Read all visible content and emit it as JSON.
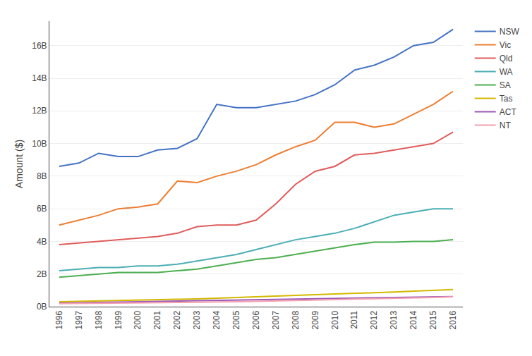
{
  "chart_data": {
    "type": "line",
    "ylabel": "Amount ($)",
    "x": [
      1996,
      1997,
      1998,
      1999,
      2000,
      2001,
      2002,
      2003,
      2004,
      2005,
      2006,
      2007,
      2008,
      2009,
      2010,
      2011,
      2012,
      2013,
      2014,
      2015,
      2016
    ],
    "series": [
      {
        "name": "NSW",
        "color": "#4472C4",
        "values": [
          8.6,
          8.8,
          9.4,
          9.2,
          9.2,
          9.6,
          9.7,
          10.3,
          12.4,
          12.2,
          12.2,
          12.4,
          12.6,
          13.0,
          13.6,
          14.5,
          14.8,
          15.3,
          16.0,
          16.2,
          17.0
        ]
      },
      {
        "name": "Vic",
        "color": "#ED7D31",
        "values": [
          5.0,
          5.3,
          5.6,
          6.0,
          6.1,
          6.3,
          7.7,
          7.6,
          8.0,
          8.3,
          8.7,
          9.3,
          9.8,
          10.2,
          11.3,
          11.3,
          11.0,
          11.2,
          11.8,
          12.4,
          13.2
        ]
      },
      {
        "name": "Qld",
        "color": "#E05C5C",
        "values": [
          3.8,
          3.9,
          4.0,
          4.1,
          4.2,
          4.3,
          4.5,
          4.9,
          5.0,
          5.0,
          5.3,
          6.3,
          7.5,
          8.3,
          8.6,
          9.3,
          9.4,
          9.6,
          9.8,
          10.0,
          10.7
        ]
      },
      {
        "name": "WA",
        "color": "#4BAEB4",
        "values": [
          2.2,
          2.3,
          2.4,
          2.4,
          2.5,
          2.5,
          2.6,
          2.8,
          3.0,
          3.2,
          3.5,
          3.8,
          4.1,
          4.3,
          4.5,
          4.8,
          5.2,
          5.6,
          5.8,
          6.0,
          6.0
        ]
      },
      {
        "name": "SA",
        "color": "#4CAF50",
        "values": [
          1.8,
          1.9,
          2.0,
          2.1,
          2.1,
          2.1,
          2.2,
          2.3,
          2.5,
          2.7,
          2.9,
          3.0,
          3.2,
          3.4,
          3.6,
          3.8,
          3.95,
          3.95,
          4.0,
          4.0,
          4.1
        ]
      },
      {
        "name": "Tas",
        "color": "#D4B800",
        "values": [
          0.3,
          0.32,
          0.35,
          0.38,
          0.4,
          0.42,
          0.45,
          0.48,
          0.52,
          0.56,
          0.6,
          0.64,
          0.68,
          0.72,
          0.76,
          0.82,
          0.86,
          0.9,
          0.95,
          1.0,
          1.05
        ]
      },
      {
        "name": "ACT",
        "color": "#9B59B6",
        "values": [
          0.22,
          0.24,
          0.26,
          0.27,
          0.28,
          0.3,
          0.31,
          0.33,
          0.35,
          0.37,
          0.39,
          0.41,
          0.43,
          0.46,
          0.48,
          0.5,
          0.53,
          0.55,
          0.57,
          0.59,
          0.62
        ]
      },
      {
        "name": "NT",
        "color": "#F4A0B0",
        "values": [
          0.18,
          0.19,
          0.2,
          0.21,
          0.22,
          0.23,
          0.24,
          0.26,
          0.28,
          0.3,
          0.32,
          0.34,
          0.37,
          0.4,
          0.43,
          0.46,
          0.48,
          0.5,
          0.53,
          0.56,
          0.6
        ]
      }
    ],
    "xlim": [
      1995.5,
      2016.5
    ],
    "xticks": [
      1996,
      1997,
      1998,
      1999,
      2000,
      2001,
      2002,
      2003,
      2004,
      2005,
      2006,
      2007,
      2008,
      2009,
      2010,
      2011,
      2012,
      2013,
      2014,
      2015,
      2016
    ],
    "ylim": [
      0,
      17.5
    ],
    "yticks": [
      {
        "value": 0,
        "label": "0B"
      },
      {
        "value": 2,
        "label": "2B"
      },
      {
        "value": 4,
        "label": "4B"
      },
      {
        "value": 6,
        "label": "6B"
      },
      {
        "value": 8,
        "label": "8B"
      },
      {
        "value": 10,
        "label": "10B"
      },
      {
        "value": 12,
        "label": "12B"
      },
      {
        "value": 14,
        "label": "14B"
      },
      {
        "value": 16,
        "label": "16B"
      }
    ],
    "grid": true,
    "legend": "right"
  }
}
